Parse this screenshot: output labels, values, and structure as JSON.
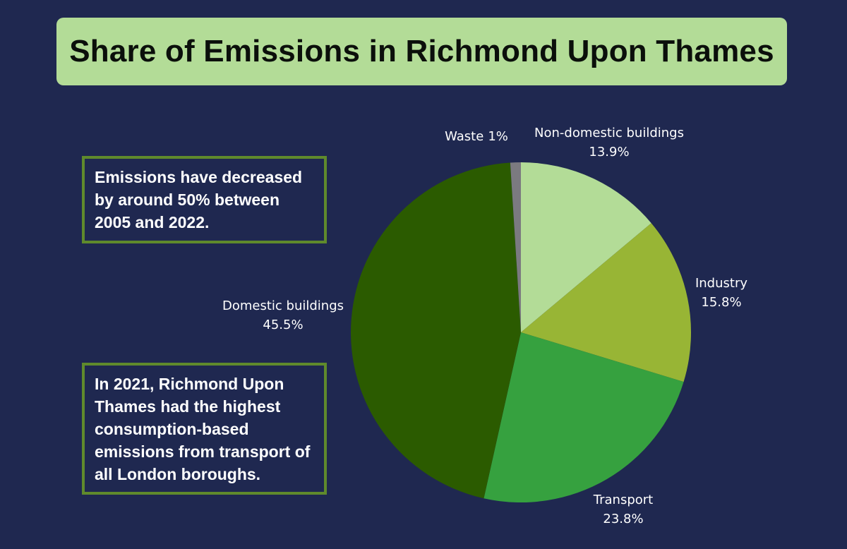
{
  "header": {
    "title": "Share of Emissions in Richmond Upon Thames"
  },
  "notes": {
    "decrease": "Emissions have decreased by around 50% between 2005 and 2022.",
    "transport": "In 2021, Richmond Upon Thames had the highest consumption-based emissions from transport of all London boroughs."
  },
  "chart_data": {
    "type": "pie",
    "title": "Share of Emissions in Richmond Upon Thames",
    "unit": "%",
    "slices": [
      {
        "name": "Non-domestic buildings",
        "value": 13.9,
        "label": "13.9%",
        "color": "#b3dc97"
      },
      {
        "name": "Industry",
        "value": 15.8,
        "label": "15.8%",
        "color": "#98b535"
      },
      {
        "name": "Transport",
        "value": 23.8,
        "label": "23.8%",
        "color": "#36a13f"
      },
      {
        "name": "Domestic buildings",
        "value": 45.5,
        "label": "45.5%",
        "color": "#2b5b00"
      },
      {
        "name": "Waste",
        "value": 1,
        "label": "1%",
        "color": "#7b7a80"
      }
    ]
  },
  "colors": {
    "background": "#1f2850",
    "title_banner": "#b3dc97",
    "note_border": "#5f8a2c"
  }
}
